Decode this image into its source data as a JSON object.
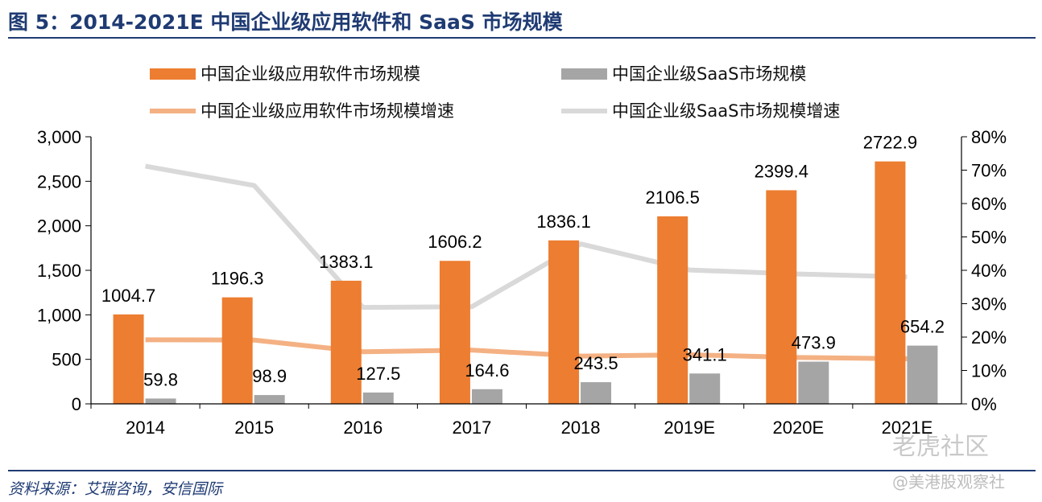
{
  "header": {
    "title": "图 5：2014-2021E 中国企业级应用软件和 SaaS 市场规模"
  },
  "footer": {
    "source": "资料来源：艾瑞咨询，安信国际"
  },
  "watermark": {
    "line1": "老虎社区",
    "line2": "@美港股观察社"
  },
  "chart_data": {
    "type": "bar",
    "categories": [
      "2014",
      "2015",
      "2016",
      "2017",
      "2018",
      "2019E",
      "2020E",
      "2021E"
    ],
    "series": [
      {
        "name": "中国企业级应用软件市场规模",
        "kind": "bar",
        "axis": "left",
        "color": "#ed7d31",
        "values": [
          1004.7,
          1196.3,
          1383.1,
          1606.2,
          1836.1,
          2106.5,
          2399.4,
          2722.9
        ],
        "labels": [
          "1004.7",
          "1196.3",
          "1383.1",
          "1606.2",
          "1836.1",
          "2106.5",
          "2399.4",
          "2722.9"
        ]
      },
      {
        "name": "中国企业级SaaS市场规模",
        "kind": "bar",
        "axis": "left",
        "color": "#a5a5a5",
        "values": [
          59.8,
          98.9,
          127.5,
          164.6,
          243.5,
          341.1,
          473.9,
          654.2
        ],
        "labels": [
          "59.8",
          "98.9",
          "127.5",
          "164.6",
          "243.5",
          "341.1",
          "473.9",
          "654.2"
        ]
      },
      {
        "name": "中国企业级应用软件市场规模增速",
        "kind": "line",
        "axis": "right",
        "color": "#f4b183",
        "values": [
          19.2,
          19.1,
          15.6,
          16.1,
          14.3,
          14.7,
          13.9,
          13.5
        ]
      },
      {
        "name": "中国企业级SaaS市场规模增速",
        "kind": "line",
        "axis": "right",
        "color": "#d9d9d9",
        "values": [
          71.2,
          65.4,
          28.9,
          29.1,
          47.9,
          40.1,
          38.9,
          38.0
        ]
      }
    ],
    "y_left": {
      "ylim": [
        0,
        3000
      ],
      "ticks": [
        "0",
        "500",
        "1,000",
        "1,500",
        "2,000",
        "2,500",
        "3,000"
      ]
    },
    "y_right": {
      "ylim": [
        0,
        80
      ],
      "ticks": [
        "0%",
        "10%",
        "20%",
        "30%",
        "40%",
        "50%",
        "60%",
        "70%",
        "80%"
      ]
    },
    "legend_position": "top",
    "grid": false
  }
}
